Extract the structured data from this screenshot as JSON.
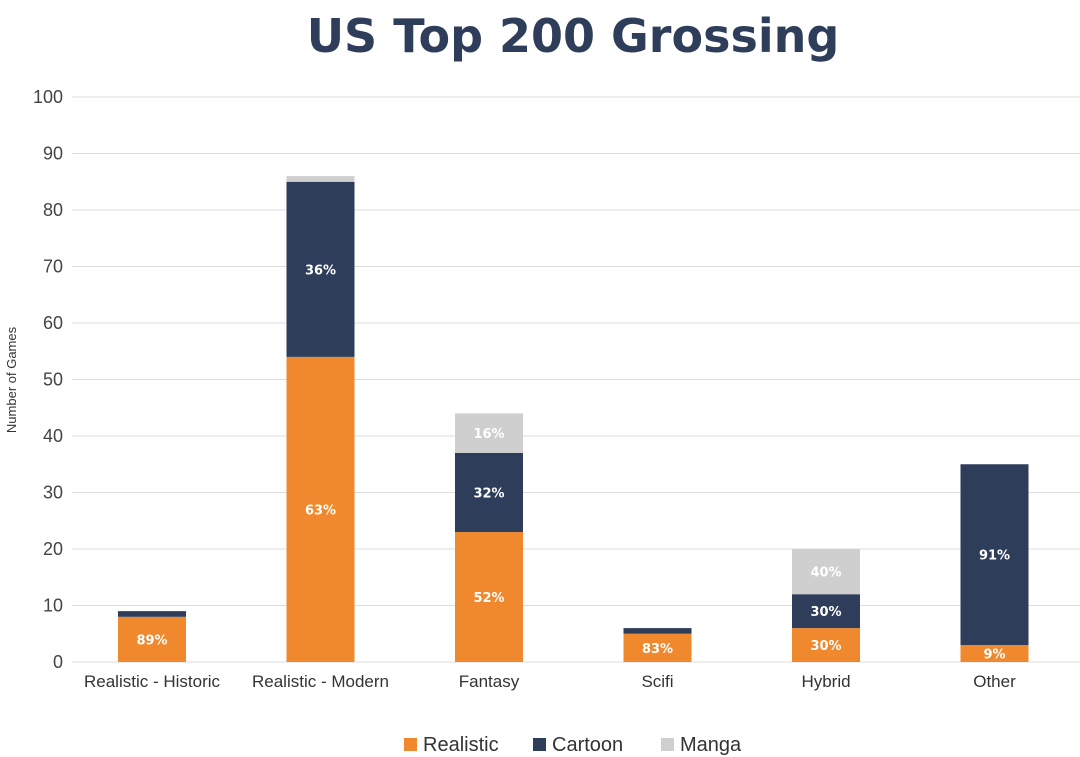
{
  "chart_data": {
    "type": "bar",
    "stacked": true,
    "title": "US Top 200 Grossing",
    "xlabel": "",
    "ylabel": "Number of Games",
    "ylim": [
      0,
      100
    ],
    "yticks": [
      0,
      10,
      20,
      30,
      40,
      50,
      60,
      70,
      80,
      90,
      100
    ],
    "grid": true,
    "legend_position": "bottom",
    "categories": [
      "Realistic - Historic",
      "Realistic - Modern",
      "Fantasy",
      "Scifi",
      "Hybrid",
      "Other"
    ],
    "series": [
      {
        "name": "Realistic",
        "color": "#F0882D",
        "values": [
          8,
          54,
          23,
          5,
          6,
          3
        ],
        "labels": [
          "89%",
          "63%",
          "52%",
          "83%",
          "30%",
          "9%"
        ]
      },
      {
        "name": "Cartoon",
        "color": "#2E3D59",
        "values": [
          1,
          31,
          14,
          1,
          6,
          32
        ],
        "labels": [
          "",
          "36%",
          "32%",
          "",
          "30%",
          "91%"
        ]
      },
      {
        "name": "Manga",
        "color": "#CFCFCF",
        "values": [
          0,
          1,
          7,
          0,
          8,
          0
        ],
        "labels": [
          "",
          "",
          "16%",
          "",
          "40%",
          ""
        ]
      }
    ],
    "title_color": "#2E3D59",
    "grid_color": "#DDDDDD"
  }
}
